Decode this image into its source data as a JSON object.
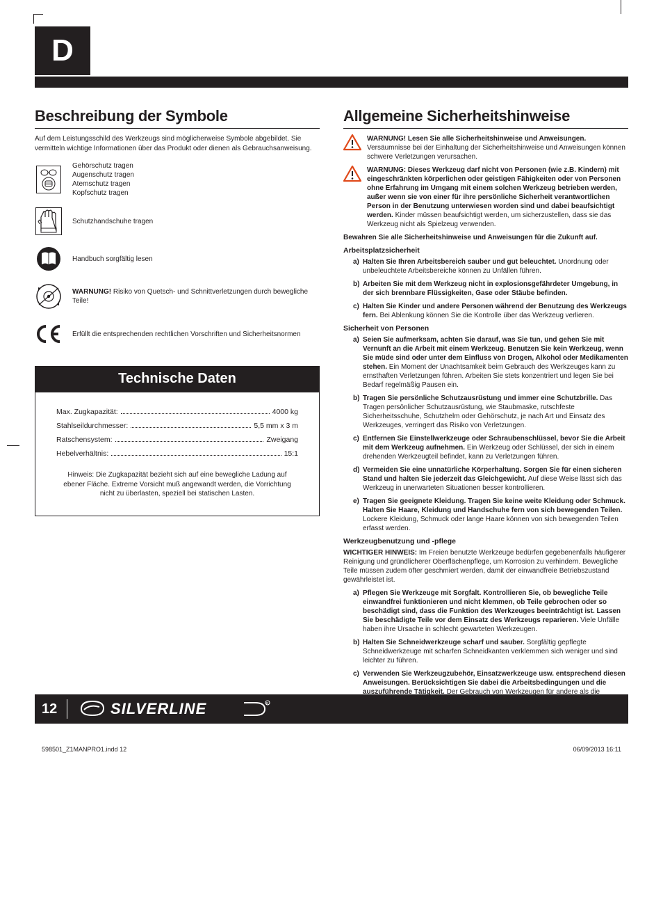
{
  "lang_badge": "D",
  "left": {
    "heading": "Beschreibung der Symbole",
    "intro": "Auf dem Leistungsschild des Werkzeugs sind möglicherweise Symbole abgebildet. Sie vermitteln wichtige Informationen über das Produkt oder dienen als Gebrauchsanweisung.",
    "symbols": {
      "ppe": "Gehörschutz tragen\nAugenschutz tragen\nAtemschutz tragen\nKopfschutz tragen",
      "gloves": "Schutzhandschuhe tragen",
      "manual": "Handbuch sorgfältig lesen",
      "pinch": "WARNUNG! Risiko von Quetsch- und Schnittverletzungen durch bewegliche Teile!",
      "ce": "Erfüllt die entsprechenden rechtlichen Vorschriften und Sicherheitsnormen"
    },
    "tech_heading": "Technische Daten",
    "specs": [
      {
        "label": "Max. Zugkapazität:",
        "value": "4000 kg"
      },
      {
        "label": "Stahlseildurchmesser:",
        "value": "5,5 mm x 3 m"
      },
      {
        "label": "Ratschensystem:",
        "value": "Zweigang"
      },
      {
        "label": "Hebelverhältnis:",
        "value": "15:1"
      }
    ],
    "tech_note": "Hinweis: Die Zugkapazität bezieht sich auf eine bewegliche Ladung auf ebener Fläche. Extreme Vorsicht muß angewandt werden, die Vorrichtung nicht zu überlasten, speziell bei statischen Lasten."
  },
  "right": {
    "heading": "Allgemeine Sicherheitshinweise",
    "warn1_bold": "WARNUNG! Lesen Sie alle Sicherheitshinweise und Anweisungen.",
    "warn1_rest": "Versäumnisse bei der Einhaltung der Sicherheitshinweise und Anweisungen können schwere Verletzungen verursachen.",
    "warn2_bold": "WARNUNG: Dieses Werkzeug darf nicht von Personen (wie z.B. Kindern) mit eingeschränkten körperlichen oder geistigen Fähigkeiten oder von Personen ohne Erfahrung im Umgang mit einem solchen Werkzeug betrieben werden, außer wenn sie von einer für ihre persönliche Sicherheit verantwortlichen Person in der Benutzung unterwiesen worden sind und dabei beaufsichtigt werden.",
    "warn2_rest": "Kinder müssen beaufsichtigt werden, um sicherzustellen, dass sie das Werkzeug nicht als Spielzeug verwenden.",
    "keep_bold": "Bewahren Sie alle Sicherheitshinweise und Anweisungen für die Zukunft auf.",
    "sec1_head": "Arbeitsplatzsicherheit",
    "sec1": [
      {
        "l": "a)",
        "b": "Halten Sie Ihren Arbeitsbereich sauber und gut beleuchtet.",
        "t": " Unordnung oder unbeleuchtete Arbeitsbereiche können zu Unfällen führen."
      },
      {
        "l": "b)",
        "b": "Arbeiten Sie mit dem Werkzeug nicht in explosionsgefährdeter Umgebung, in der sich brennbare Flüssigkeiten, Gase oder Stäube befinden.",
        "t": ""
      },
      {
        "l": "c)",
        "b": "Halten Sie Kinder und andere Personen während der Benutzung des Werkzeugs fern.",
        "t": " Bei Ablenkung können Sie die Kontrolle über das Werkzeug verlieren."
      }
    ],
    "sec2_head": "Sicherheit von Personen",
    "sec2": [
      {
        "l": "a)",
        "b": "Seien Sie aufmerksam, achten Sie darauf, was Sie tun, und gehen Sie mit Vernunft an die Arbeit mit einem Werkzeug. Benutzen Sie kein Werkzeug, wenn Sie müde sind oder unter dem Einfluss von Drogen, Alkohol oder Medikamenten stehen.",
        "t": " Ein Moment der Unachtsamkeit beim Gebrauch des Werkzeuges kann zu ernsthaften Verletzungen führen. Arbeiten Sie stets konzentriert und legen Sie bei Bedarf regelmäßig Pausen ein."
      },
      {
        "l": "b)",
        "b": "Tragen Sie persönliche Schutzausrüstung und immer eine Schutzbrille.",
        "t": " Das Tragen persönlicher Schutzausrüstung, wie Staubmaske, rutschfeste Sicherheitsschuhe, Schutzhelm oder Gehörschutz, je nach Art und Einsatz des Werkzeuges, verringert das Risiko von Verletzungen."
      },
      {
        "l": "c)",
        "b": "Entfernen Sie Einstellwerkzeuge oder Schraubenschlüssel, bevor Sie die Arbeit mit dem Werkzeug aufnehmen.",
        "t": " Ein Werkzeug oder Schlüssel, der sich in einem drehenden Werkzeugteil befindet, kann zu Verletzungen führen."
      },
      {
        "l": "d)",
        "b": "Vermeiden Sie eine unnatürliche Körperhaltung. Sorgen Sie für einen sicheren Stand und halten Sie jederzeit das Gleichgewicht.",
        "t": " Auf diese Weise lässt sich das Werkzeug in unerwarteten Situationen besser kontrollieren."
      },
      {
        "l": "e)",
        "b": "Tragen Sie geeignete Kleidung. Tragen Sie keine weite Kleidung oder Schmuck. Halten Sie Haare, Kleidung und Handschuhe fern von sich bewegenden Teilen.",
        "t": " Lockere Kleidung, Schmuck oder lange Haare können von sich bewegenden Teilen erfasst werden."
      }
    ],
    "sec3_head": "Werkzeugbenutzung und -pflege",
    "sec3_intro_b": "WICHTIGER HINWEIS:",
    "sec3_intro_t": " Im Freien benutzte Werkzeuge bedürfen gegebenenfalls häufigerer Reinigung und gründlicherer Oberflächenpflege, um Korrosion zu verhindern. Bewegliche Teile müssen zudem öfter geschmiert werden, damit der einwandfreie Betriebszustand gewährleistet ist.",
    "sec3": [
      {
        "l": "a)",
        "b": "Pflegen Sie Werkzeuge mit Sorgfalt. Kontrollieren Sie, ob bewegliche Teile einwandfrei funktionieren und nicht klemmen, ob Teile gebrochen oder so beschädigt sind, dass die Funktion des Werkzeuges beeinträchtigt ist. Lassen Sie beschädigte Teile vor dem Einsatz des Werkzeugs reparieren.",
        "t": " Viele Unfälle haben ihre Ursache in schlecht gewarteten Werkzeugen."
      },
      {
        "l": "b)",
        "b": "Halten Sie Schneidwerkzeuge scharf und sauber.",
        "t": " Sorgfältig gepflegte Schneidwerkzeuge mit scharfen Schneidkanten verklemmen sich weniger und sind leichter zu führen."
      },
      {
        "l": "c)",
        "b": "Verwenden Sie Werkzeugzubehör, Einsatzwerkzeuge usw. entsprechend diesen Anweisungen. Berücksichtigen Sie dabei die Arbeitsbedingungen und die auszuführende Tätigkeit.",
        "t": " Der Gebrauch von Werkzeugen für andere als die vorgesehenen Anwendungen kann zu gefährlichen Situationen führen."
      }
    ]
  },
  "footer": {
    "page": "12",
    "brand": "SILVERLINE",
    "meta_left": "598501_Z1MANPRO1.indd   12",
    "meta_right": "06/09/2013   16:11"
  }
}
